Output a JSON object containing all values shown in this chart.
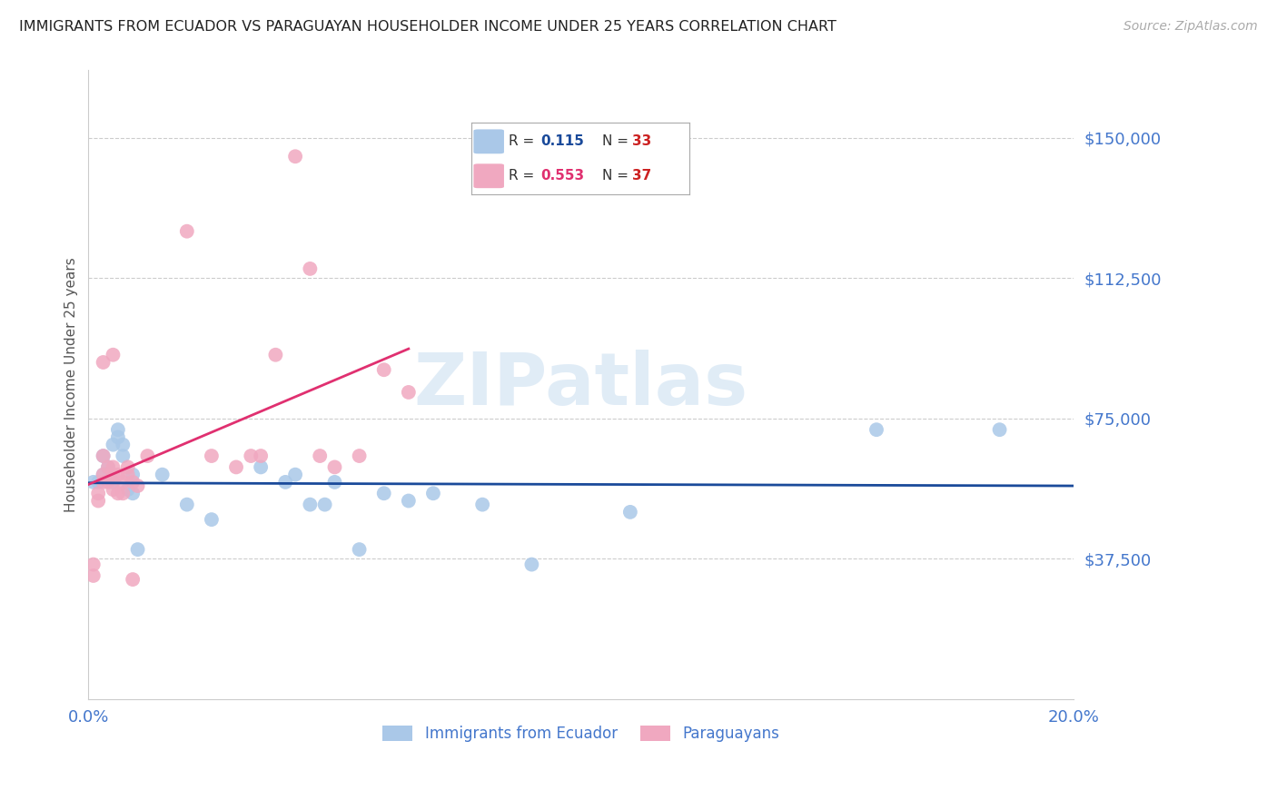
{
  "title": "IMMIGRANTS FROM ECUADOR VS PARAGUAYAN HOUSEHOLDER INCOME UNDER 25 YEARS CORRELATION CHART",
  "source": "Source: ZipAtlas.com",
  "ylabel": "Householder Income Under 25 years",
  "xlim": [
    0.0,
    0.2
  ],
  "ylim": [
    0,
    168000
  ],
  "yticks": [
    37500,
    75000,
    112500,
    150000
  ],
  "ytick_labels": [
    "$37,500",
    "$75,000",
    "$112,500",
    "$150,000"
  ],
  "xticks": [
    0.0,
    0.04,
    0.08,
    0.12,
    0.16,
    0.2
  ],
  "xtick_labels": [
    "0.0%",
    "",
    "",
    "",
    "",
    "20.0%"
  ],
  "blue_color": "#aac8e8",
  "pink_color": "#f0a8c0",
  "blue_line_color": "#1a4a9a",
  "pink_line_color": "#e03070",
  "axis_color": "#4477cc",
  "legend_R_blue": "0.115",
  "legend_N_blue": "33",
  "legend_R_pink": "0.553",
  "legend_N_pink": "37",
  "series1_label": "Immigrants from Ecuador",
  "series2_label": "Paraguayans",
  "watermark": "ZIPatlas",
  "blue_x": [
    0.001,
    0.002,
    0.003,
    0.003,
    0.004,
    0.005,
    0.005,
    0.006,
    0.006,
    0.007,
    0.007,
    0.008,
    0.009,
    0.009,
    0.01,
    0.015,
    0.02,
    0.025,
    0.035,
    0.04,
    0.042,
    0.045,
    0.048,
    0.05,
    0.055,
    0.06,
    0.065,
    0.07,
    0.08,
    0.09,
    0.11,
    0.16,
    0.185
  ],
  "blue_y": [
    58000,
    58000,
    65000,
    60000,
    62000,
    68000,
    58000,
    70000,
    72000,
    65000,
    68000,
    56000,
    60000,
    55000,
    40000,
    60000,
    52000,
    48000,
    62000,
    58000,
    60000,
    52000,
    52000,
    58000,
    40000,
    55000,
    53000,
    55000,
    52000,
    36000,
    50000,
    72000,
    72000
  ],
  "pink_x": [
    0.001,
    0.001,
    0.002,
    0.002,
    0.003,
    0.003,
    0.003,
    0.003,
    0.004,
    0.004,
    0.005,
    0.005,
    0.005,
    0.005,
    0.006,
    0.006,
    0.007,
    0.007,
    0.008,
    0.008,
    0.009,
    0.009,
    0.01,
    0.012,
    0.02,
    0.025,
    0.03,
    0.033,
    0.035,
    0.038,
    0.042,
    0.045,
    0.047,
    0.05,
    0.055,
    0.06,
    0.065
  ],
  "pink_y": [
    36000,
    33000,
    53000,
    55000,
    90000,
    65000,
    60000,
    58000,
    62000,
    58000,
    60000,
    62000,
    56000,
    92000,
    55000,
    60000,
    58000,
    55000,
    60000,
    62000,
    58000,
    32000,
    57000,
    65000,
    125000,
    65000,
    62000,
    65000,
    65000,
    92000,
    145000,
    115000,
    65000,
    62000,
    65000,
    88000,
    82000
  ],
  "pink_line_xrange": [
    0.0,
    0.065
  ],
  "blue_line_xrange": [
    0.0,
    0.2
  ]
}
